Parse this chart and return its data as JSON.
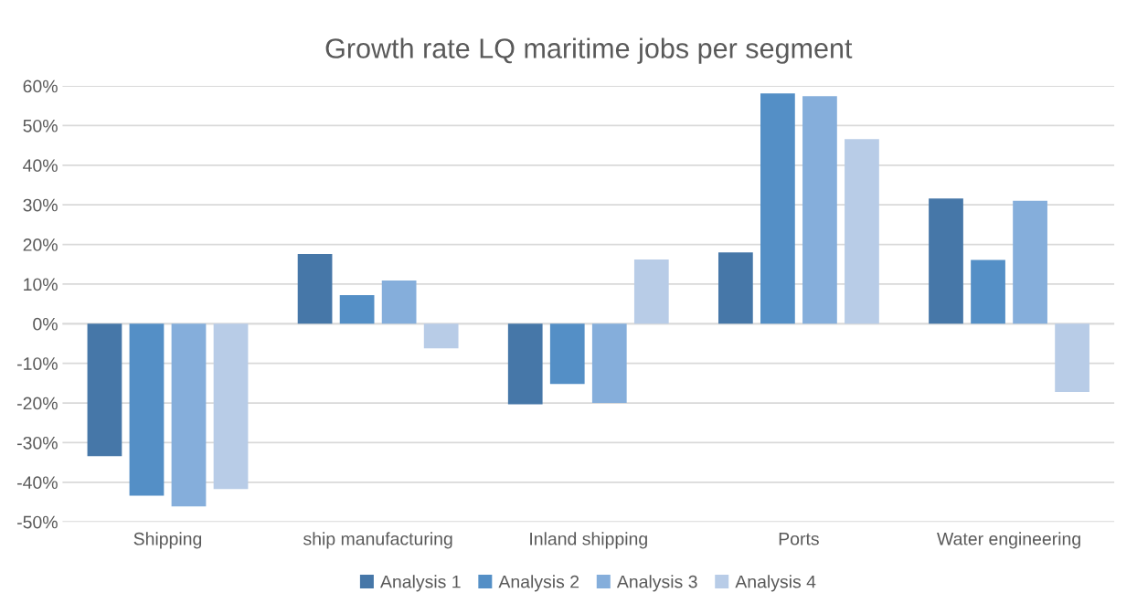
{
  "chart_data": {
    "type": "bar",
    "title": "Growth rate LQ maritime jobs per segment",
    "categories": [
      "Shipping",
      "ship manufacturing",
      "Inland shipping",
      "Ports",
      "Water engineering"
    ],
    "series": [
      {
        "name": "Analysis 1",
        "color": "#4677a8",
        "values": [
          -33.4,
          17.6,
          -20.3,
          18.0,
          31.6
        ]
      },
      {
        "name": "Analysis 2",
        "color": "#548fc6",
        "values": [
          -43.4,
          7.2,
          -15.2,
          58.1,
          16.1
        ]
      },
      {
        "name": "Analysis 3",
        "color": "#85aedb",
        "values": [
          -46.1,
          10.9,
          -20.0,
          57.4,
          31.0
        ]
      },
      {
        "name": "Analysis 4",
        "color": "#b8cce7",
        "values": [
          -41.7,
          -6.2,
          16.2,
          46.6,
          -17.2
        ]
      }
    ],
    "ylim": [
      -50,
      60
    ],
    "yticks": [
      {
        "value": -50,
        "label": "-50%"
      },
      {
        "value": -40,
        "label": "-40%"
      },
      {
        "value": -30,
        "label": "-30%"
      },
      {
        "value": -20,
        "label": "-20%"
      },
      {
        "value": -10,
        "label": "-10%"
      },
      {
        "value": 0,
        "label": "0%"
      },
      {
        "value": 10,
        "label": "10%"
      },
      {
        "value": 20,
        "label": "20%"
      },
      {
        "value": 30,
        "label": "30%"
      },
      {
        "value": 40,
        "label": "40%"
      },
      {
        "value": 50,
        "label": "50%"
      },
      {
        "value": 60,
        "label": "60%"
      }
    ],
    "grid": "y",
    "legend": "bottom"
  }
}
